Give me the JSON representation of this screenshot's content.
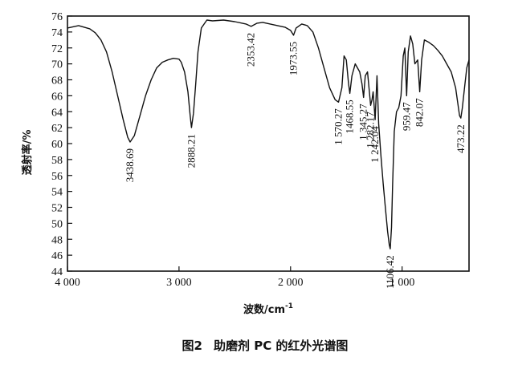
{
  "chart_data": {
    "type": "line",
    "caption_fig": "图2",
    "caption_text": "助磨剂 PC 的红外光谱图",
    "xlabel": "波数/cm",
    "xlabel_sup": "-1",
    "ylabel": "透射率/%",
    "xlim": [
      4000,
      400
    ],
    "ylim": [
      44,
      76
    ],
    "x_ticks": [
      4000,
      3000,
      2000,
      1000
    ],
    "x_tick_labels": [
      "4 000",
      "3 000",
      "2 000",
      "1 000"
    ],
    "y_ticks": [
      44,
      46,
      48,
      50,
      52,
      54,
      56,
      58,
      60,
      62,
      64,
      66,
      68,
      70,
      72,
      74,
      76
    ],
    "y_tick_labels": [
      "44",
      "46",
      "48",
      "50",
      "52",
      "54",
      "56",
      "58",
      "60",
      "62",
      "64",
      "66",
      "68",
      "70",
      "72",
      "74",
      "76"
    ],
    "grid": false,
    "series": [
      {
        "x": [
          4000,
          3900,
          3800,
          3750,
          3700,
          3650,
          3600,
          3550,
          3500,
          3460,
          3438.69,
          3400,
          3350,
          3300,
          3250,
          3200,
          3150,
          3100,
          3050,
          3000,
          2980,
          2950,
          2920,
          2900,
          2888.21,
          2870,
          2850,
          2830,
          2800,
          2750,
          2700,
          2600,
          2500,
          2400,
          2353.42,
          2300,
          2250,
          2150,
          2050,
          2000,
          1973.55,
          1950,
          1900,
          1850,
          1800,
          1750,
          1700,
          1650,
          1600,
          1580,
          1570.27,
          1540,
          1520,
          1500,
          1480,
          1468.55,
          1450,
          1420,
          1400,
          1380,
          1360,
          1345.27,
          1330,
          1310,
          1282.17,
          1270,
          1260,
          1242.04,
          1225,
          1210,
          1190,
          1170,
          1150,
          1130,
          1115,
          1106.42,
          1095,
          1085,
          1070,
          1050,
          1030,
          1010,
          990,
          975,
          959.47,
          945,
          925,
          905,
          885,
          860,
          842.07,
          825,
          800,
          760,
          720,
          680,
          640,
          600,
          560,
          520,
          500,
          485,
          473.22,
          460,
          440,
          420,
          400
        ],
        "y": [
          74.5,
          74.8,
          74.4,
          73.9,
          73.0,
          71.5,
          69.0,
          66.0,
          63.0,
          60.8,
          60.2,
          61.0,
          63.5,
          66.0,
          68.0,
          69.5,
          70.2,
          70.5,
          70.7,
          70.6,
          70.2,
          69.0,
          66.5,
          63.5,
          62.0,
          63.8,
          67.5,
          71.5,
          74.5,
          75.5,
          75.4,
          75.5,
          75.3,
          75.0,
          74.7,
          75.1,
          75.2,
          74.9,
          74.6,
          74.2,
          73.6,
          74.5,
          75.0,
          74.8,
          74.0,
          72.0,
          69.5,
          67.0,
          65.5,
          65.3,
          65.2,
          67.0,
          71.0,
          70.5,
          67.5,
          66.3,
          68.5,
          70.0,
          69.5,
          69.0,
          67.5,
          65.8,
          68.5,
          69.0,
          64.8,
          65.5,
          66.5,
          63.0,
          68.5,
          62.5,
          58.5,
          55.0,
          52.0,
          49.0,
          47.3,
          46.8,
          49.5,
          55.0,
          61.5,
          64.0,
          64.5,
          66.0,
          71.0,
          72.0,
          66.0,
          71.5,
          73.5,
          72.5,
          70.0,
          70.5,
          66.5,
          70.5,
          73.0,
          72.7,
          72.3,
          71.7,
          71.0,
          70.0,
          69.0,
          67.0,
          65.0,
          63.5,
          63.2,
          64.5,
          67.0,
          69.5,
          70.5
        ]
      }
    ],
    "annotations": [
      {
        "label": "3438.69",
        "x": 3438.69,
        "y": 60.2
      },
      {
        "label": "2888.21",
        "x": 2888.21,
        "y": 62.0
      },
      {
        "label": "2353.42",
        "x": 2353.42,
        "y": 74.7
      },
      {
        "label": "1973.55",
        "x": 1973.55,
        "y": 73.6
      },
      {
        "label": "1 570.27",
        "x": 1570.27,
        "y": 65.2
      },
      {
        "label": "1468.55",
        "x": 1468.55,
        "y": 66.3
      },
      {
        "label": "1 345.27",
        "x": 1345.27,
        "y": 65.8
      },
      {
        "label": "1 282.17",
        "x": 1282.17,
        "y": 64.8
      },
      {
        "label": "1 242.04",
        "x": 1242.04,
        "y": 63.0
      },
      {
        "label": "1106.42",
        "x": 1106.42,
        "y": 46.8
      },
      {
        "label": "959.47",
        "x": 959.47,
        "y": 66.0
      },
      {
        "label": "842.07",
        "x": 842.07,
        "y": 66.5
      },
      {
        "label": "473.22",
        "x": 473.22,
        "y": 63.2
      }
    ]
  }
}
